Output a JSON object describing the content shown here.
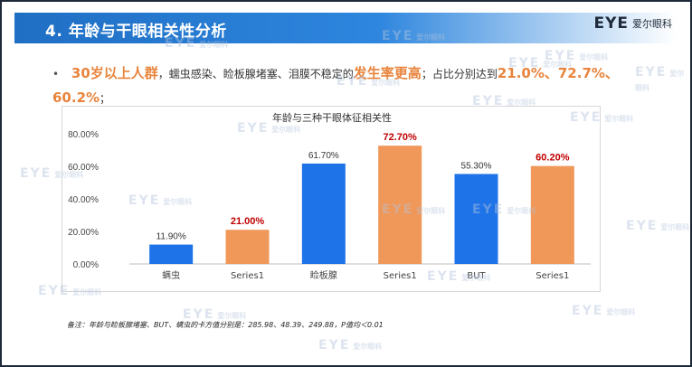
{
  "header": {
    "title": "4. 年龄与干眼相关性分析",
    "logo_mark": "EYE",
    "logo_text": "爱尔眼科"
  },
  "bullet": {
    "part1": "30岁以上人群",
    "part2": "，蠕虫感染、睑板腺堵塞、泪膜不稳定的",
    "part3": "发生率更高",
    "part4": "；占比分别达到",
    "part5": "21.0%、72.7%、60.2%",
    "part6": "；"
  },
  "chart_data": {
    "type": "bar",
    "title": "年龄与三种干眼体征相关性",
    "categories": [
      "螨虫",
      "Series1",
      "睑板腺",
      "Series1",
      "BUT",
      "Series1"
    ],
    "values": [
      11.9,
      21.0,
      61.7,
      72.7,
      55.3,
      60.2
    ],
    "value_labels": [
      "11.90%",
      "21.00%",
      "61.70%",
      "72.70%",
      "55.30%",
      "60.20%"
    ],
    "bar_colors": [
      "#1e73e8",
      "#f0985a",
      "#1e73e8",
      "#f0985a",
      "#1e73e8",
      "#f0985a"
    ],
    "label_colors": [
      "#333333",
      "#c00000",
      "#333333",
      "#c00000",
      "#333333",
      "#c00000"
    ],
    "label_bold": [
      false,
      true,
      false,
      true,
      false,
      true
    ],
    "ylim": [
      0,
      80
    ],
    "yticks": [
      "0.00%",
      "20.00%",
      "40.00%",
      "60.00%",
      "80.00%"
    ],
    "ytick_values": [
      0,
      20,
      40,
      60,
      80
    ],
    "grid": false
  },
  "footnote": "备注：年龄与睑板腺堵塞、BUT、螨虫的卡方值分别是：285.98、48.39、249.88，P值均＜0.01",
  "watermark": {
    "mark": "EYE",
    "text": "爱尔眼科"
  }
}
